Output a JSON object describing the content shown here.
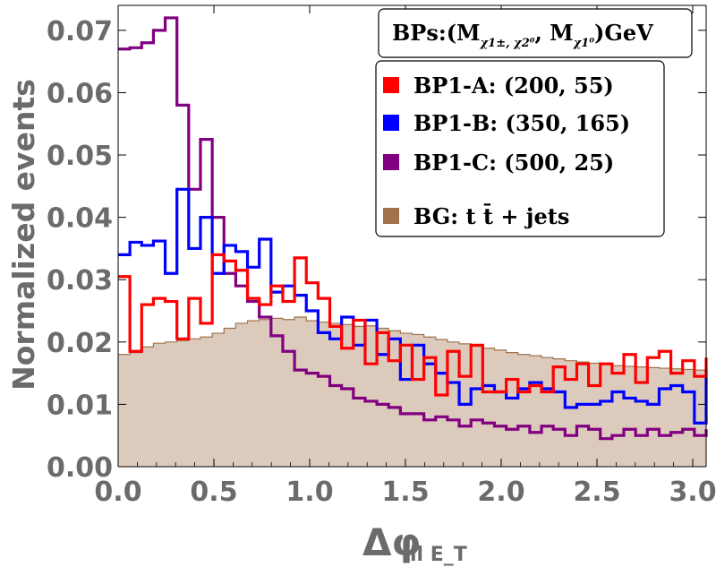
{
  "chart_data": {
    "type": "histogram",
    "xlabel": "Δφ",
    "xlabel_subscript": "ll E_T",
    "ylabel": "Normalized events",
    "xlim": [
      0.0,
      3.07
    ],
    "ylim": [
      0.0,
      0.074
    ],
    "xticks": [
      "0.0",
      "0.5",
      "1.0",
      "1.5",
      "2.0",
      "2.5",
      "3.0"
    ],
    "xtick_values": [
      0.0,
      0.5,
      1.0,
      1.5,
      2.0,
      2.5,
      3.0
    ],
    "yticks": [
      "0.00",
      "0.01",
      "0.02",
      "0.03",
      "0.04",
      "0.05",
      "0.06",
      "0.07"
    ],
    "ytick_values": [
      0.0,
      0.01,
      0.02,
      0.03,
      0.04,
      0.05,
      0.06,
      0.07
    ],
    "bin_width": 0.0614,
    "legend_title": "BPs:(M",
    "legend_title_sub": "χ1±, χ2⁰",
    "legend_title_mid": ", M",
    "legend_title_sub2": "χ1⁰",
    "legend_title_end": ")GeV",
    "series": [
      {
        "name": "BP1-A: (200, 55)",
        "color": "#ff0000",
        "style": "step",
        "values": [
          0.0305,
          0.0185,
          0.026,
          0.027,
          0.0265,
          0.0205,
          0.027,
          0.023,
          0.034,
          0.033,
          0.0315,
          0.027,
          0.026,
          0.029,
          0.0265,
          0.0335,
          0.0295,
          0.027,
          0.0225,
          0.019,
          0.0235,
          0.0165,
          0.0215,
          0.017,
          0.0195,
          0.014,
          0.0175,
          0.0115,
          0.0185,
          0.0145,
          0.0195,
          0.012,
          0.012,
          0.014,
          0.012,
          0.013,
          0.012,
          0.016,
          0.014,
          0.0165,
          0.013,
          0.0165,
          0.015,
          0.018,
          0.0135,
          0.0175,
          0.0185,
          0.015,
          0.017,
          0.0145,
          0.0175
        ]
      },
      {
        "name": "BP1-B: (350, 165)",
        "color": "#0000ff",
        "style": "step",
        "values": [
          0.034,
          0.036,
          0.0355,
          0.0362,
          0.031,
          0.0445,
          0.035,
          0.04,
          0.031,
          0.0355,
          0.0345,
          0.032,
          0.0365,
          0.028,
          0.029,
          0.0275,
          0.025,
          0.0215,
          0.0205,
          0.024,
          0.0195,
          0.0235,
          0.018,
          0.0205,
          0.014,
          0.0195,
          0.0165,
          0.015,
          0.0135,
          0.01,
          0.0125,
          0.013,
          0.012,
          0.011,
          0.0125,
          0.0135,
          0.0125,
          0.012,
          0.0095,
          0.01,
          0.01,
          0.0105,
          0.012,
          0.011,
          0.0105,
          0.01,
          0.0125,
          0.013,
          0.012,
          0.007,
          0.0155
        ]
      },
      {
        "name": "BP1-C: (500, 25)",
        "color": "#800080",
        "style": "step",
        "values": [
          0.067,
          0.0672,
          0.068,
          0.07,
          0.072,
          0.058,
          0.0445,
          0.0525,
          0.04,
          0.031,
          0.029,
          0.0265,
          0.024,
          0.021,
          0.0185,
          0.0155,
          0.015,
          0.0145,
          0.013,
          0.0125,
          0.011,
          0.0105,
          0.01,
          0.0095,
          0.0085,
          0.0085,
          0.0075,
          0.008,
          0.0075,
          0.0065,
          0.0075,
          0.007,
          0.0065,
          0.006,
          0.0065,
          0.0055,
          0.0065,
          0.006,
          0.005,
          0.0065,
          0.006,
          0.0045,
          0.005,
          0.006,
          0.005,
          0.006,
          0.005,
          0.0055,
          0.006,
          0.005,
          0.006
        ]
      },
      {
        "name": "BG: t t̄ + jets",
        "color": "#a0724a",
        "fill": "#dccbbd",
        "style": "filled",
        "values": [
          0.018,
          0.0183,
          0.0192,
          0.0198,
          0.02,
          0.0202,
          0.0205,
          0.0208,
          0.0214,
          0.0222,
          0.023,
          0.0234,
          0.0236,
          0.0238,
          0.0236,
          0.024,
          0.0234,
          0.0232,
          0.023,
          0.0228,
          0.0225,
          0.0226,
          0.0222,
          0.0218,
          0.0214,
          0.0212,
          0.0208,
          0.0204,
          0.02,
          0.0197,
          0.0193,
          0.019,
          0.0187,
          0.0183,
          0.018,
          0.0178,
          0.0175,
          0.0173,
          0.017,
          0.0168,
          0.0166,
          0.0164,
          0.0162,
          0.0161,
          0.016,
          0.0159,
          0.0158,
          0.0157,
          0.0156,
          0.0155,
          0.0154
        ]
      }
    ],
    "legend_location": "top-right"
  }
}
